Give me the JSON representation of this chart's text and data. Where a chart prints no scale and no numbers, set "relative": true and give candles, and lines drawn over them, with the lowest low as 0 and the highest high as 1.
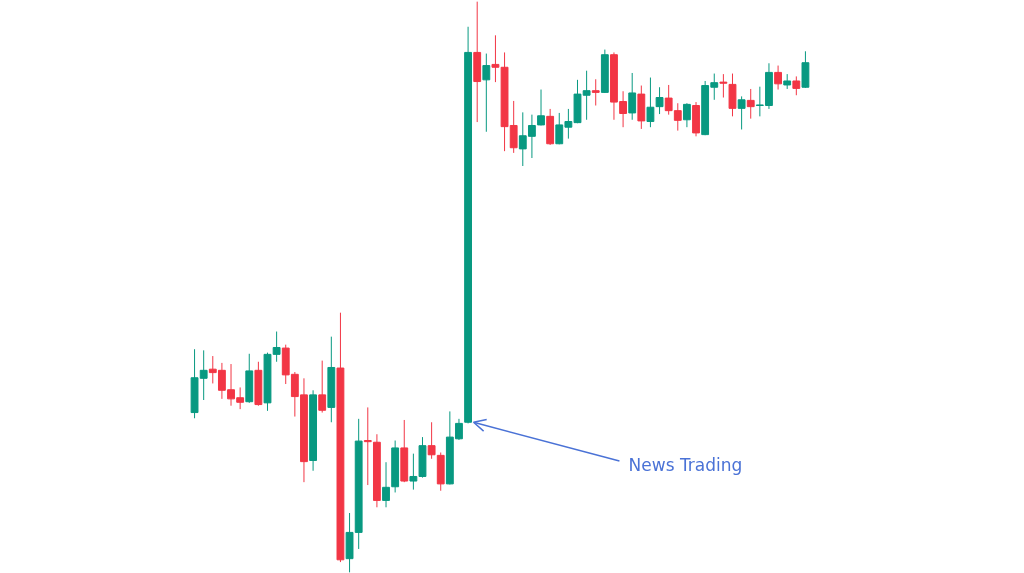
{
  "chart_data": {
    "type": "candlestick",
    "relative": true,
    "tick_labels": false,
    "categories": [
      null,
      null,
      null,
      null,
      null,
      null,
      null,
      null,
      null,
      null,
      null,
      null,
      null,
      null,
      null,
      null,
      null,
      null,
      null,
      null,
      null,
      null,
      null,
      null,
      null,
      null,
      null,
      null,
      null,
      null,
      null,
      null,
      null,
      null,
      null,
      null,
      null,
      null,
      null,
      null,
      null,
      null,
      null,
      null,
      null,
      null,
      null,
      null,
      null,
      null,
      null,
      null,
      null,
      null,
      null,
      null,
      null,
      null,
      null,
      null,
      null,
      null,
      null,
      null,
      null,
      null,
      null,
      null
    ],
    "ohlc": [
      [
        0.28,
        0.391,
        0.27,
        0.341
      ],
      [
        0.34,
        0.389,
        0.302,
        0.354
      ],
      [
        0.356,
        0.379,
        0.331,
        0.35
      ],
      [
        0.354,
        0.367,
        0.304,
        0.319
      ],
      [
        0.32,
        0.365,
        0.292,
        0.304
      ],
      [
        0.306,
        0.324,
        0.286,
        0.298
      ],
      [
        0.299,
        0.383,
        0.297,
        0.353
      ],
      [
        0.354,
        0.369,
        0.292,
        0.294
      ],
      [
        0.297,
        0.385,
        0.283,
        0.382
      ],
      [
        0.382,
        0.422,
        0.369,
        0.394
      ],
      [
        0.393,
        0.399,
        0.33,
        0.346
      ],
      [
        0.347,
        0.351,
        0.273,
        0.308
      ],
      [
        0.311,
        0.34,
        0.158,
        0.194
      ],
      [
        0.196,
        0.319,
        0.178,
        0.311
      ],
      [
        0.311,
        0.371,
        0.28,
        0.284
      ],
      [
        0.289,
        0.413,
        0.263,
        0.359
      ],
      [
        0.358,
        0.455,
        0.018,
        0.022
      ],
      [
        0.024,
        0.104,
        0,
        0.07
      ],
      [
        0.07,
        0.269,
        0.041,
        0.23
      ],
      [
        0.231,
        0.289,
        0.153,
        0.229
      ],
      [
        0.228,
        0.242,
        0.114,
        0.126
      ],
      [
        0.126,
        0.193,
        0.114,
        0.149
      ],
      [
        0.15,
        0.231,
        0.14,
        0.218
      ],
      [
        0.218,
        0.267,
        0.158,
        0.16
      ],
      [
        0.16,
        0.208,
        0.145,
        0.168
      ],
      [
        0.168,
        0.237,
        0.166,
        0.222
      ],
      [
        0.222,
        0.263,
        0.199,
        0.206
      ],
      [
        0.205,
        0.21,
        0.143,
        0.155
      ],
      [
        0.155,
        0.282,
        0.154,
        0.237
      ],
      [
        0.234,
        0.269,
        0.232,
        0.261
      ],
      [
        0.263,
        0.956,
        0.261,
        0.911
      ],
      [
        0.911,
        1,
        0.789,
        0.86
      ],
      [
        0.863,
        0.909,
        0.772,
        0.888
      ],
      [
        0.89,
        0.941,
        0.859,
        0.885
      ],
      [
        0.885,
        0.911,
        0.738,
        0.781
      ],
      [
        0.783,
        0.826,
        0.735,
        0.744
      ],
      [
        0.742,
        0.806,
        0.712,
        0.765
      ],
      [
        0.764,
        0.802,
        0.726,
        0.783
      ],
      [
        0.784,
        0.846,
        0.783,
        0.8
      ],
      [
        0.799,
        0.812,
        0.749,
        0.751
      ],
      [
        0.751,
        0.805,
        0.75,
        0.784
      ],
      [
        0.78,
        0.812,
        0.76,
        0.79
      ],
      [
        0.788,
        0.863,
        0.787,
        0.838
      ],
      [
        0.836,
        0.879,
        0.793,
        0.844
      ],
      [
        0.844,
        0.864,
        0.818,
        0.841
      ],
      [
        0.841,
        0.916,
        0.84,
        0.907
      ],
      [
        0.907,
        0.911,
        0.793,
        0.824
      ],
      [
        0.825,
        0.843,
        0.78,
        0.804
      ],
      [
        0.805,
        0.875,
        0.793,
        0.84
      ],
      [
        0.838,
        0.853,
        0.777,
        0.791
      ],
      [
        0.79,
        0.867,
        0.78,
        0.815
      ],
      [
        0.816,
        0.85,
        0.803,
        0.832
      ],
      [
        0.831,
        0.854,
        0.802,
        0.809
      ],
      [
        0.809,
        0.822,
        0.774,
        0.792
      ],
      [
        0.793,
        0.822,
        0.78,
        0.82
      ],
      [
        0.818,
        0.824,
        0.764,
        0.77
      ],
      [
        0.767,
        0.861,
        0.766,
        0.853
      ],
      [
        0.85,
        0.874,
        0.828,
        0.858
      ],
      [
        0.859,
        0.873,
        0.832,
        0.857
      ],
      [
        0.855,
        0.874,
        0.799,
        0.813
      ],
      [
        0.813,
        0.834,
        0.776,
        0.828
      ],
      [
        0.827,
        0.847,
        0.795,
        0.816
      ],
      [
        0.818,
        0.851,
        0.799,
        0.819
      ],
      [
        0.818,
        0.892,
        0.812,
        0.876
      ],
      [
        0.876,
        0.888,
        0.846,
        0.856
      ],
      [
        0.854,
        0.873,
        0.847,
        0.861
      ],
      [
        0.861,
        0.869,
        0.836,
        0.848
      ],
      [
        0.85,
        0.913,
        0.849,
        0.893
      ]
    ],
    "colors": [
      "#089981",
      "#089981",
      "#f23645",
      "#f23645",
      "#f23645",
      "#f23645",
      "#089981",
      "#f23645",
      "#089981",
      "#089981",
      "#f23645",
      "#f23645",
      "#f23645",
      "#089981",
      "#f23645",
      "#089981",
      "#f23645",
      "#089981",
      "#089981",
      "#f23645",
      "#f23645",
      "#089981",
      "#089981",
      "#f23645",
      "#089981",
      "#089981",
      "#f23645",
      "#f23645",
      "#089981",
      "#089981",
      "#089981",
      "#f23645",
      "#089981",
      "#f23645",
      "#f23645",
      "#f23645",
      "#089981",
      "#089981",
      "#089981",
      "#f23645",
      "#089981",
      "#089981",
      "#089981",
      "#089981",
      "#f23645",
      "#089981",
      "#f23645",
      "#f23645",
      "#089981",
      "#f23645",
      "#089981",
      "#089981",
      "#f23645",
      "#f23645",
      "#089981",
      "#f23645",
      "#089981",
      "#089981",
      "#f23645",
      "#f23645",
      "#089981",
      "#f23645",
      "#089981",
      "#089981",
      "#f23645",
      "#089981",
      "#f23645",
      "#089981"
    ],
    "annotations": [
      "News Trading"
    ]
  }
}
